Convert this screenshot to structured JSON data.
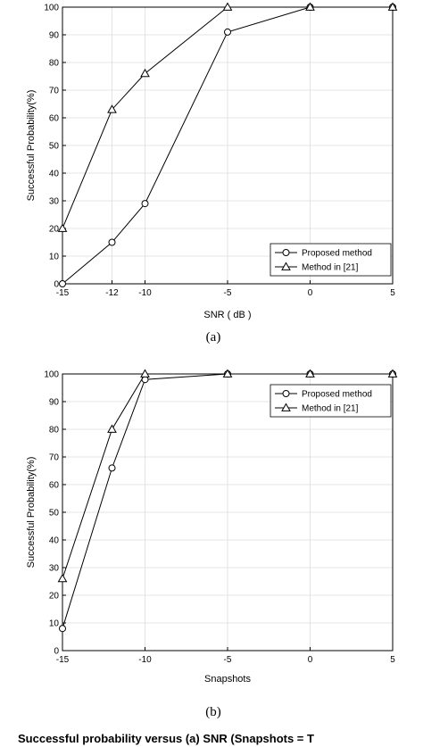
{
  "chart_data": [
    {
      "type": "line",
      "xlabel": "SNR ( dB )",
      "ylabel": "Successful Probability(%)",
      "x": [
        -15,
        -12,
        -10,
        -5,
        0,
        5
      ],
      "xticks": [
        "-15",
        "-12",
        "-10",
        "-5",
        "0",
        "5"
      ],
      "xlim": [
        -15,
        5
      ],
      "ylim": [
        0,
        100
      ],
      "yticks": [
        "0",
        "10",
        "20",
        "30",
        "40",
        "50",
        "60",
        "70",
        "80",
        "90",
        "100"
      ],
      "grid": true,
      "legend_position": "bottom-right",
      "series": [
        {
          "name": "Proposed method",
          "marker": "circle",
          "values": [
            0,
            15,
            29,
            91,
            100,
            100
          ]
        },
        {
          "name": "Method in [21]",
          "marker": "triangle",
          "values": [
            20,
            63,
            76,
            100,
            100,
            100
          ]
        }
      ],
      "sublabel": "(a)"
    },
    {
      "type": "line",
      "xlabel": "Snapshots",
      "ylabel": "Successful Probability(%)",
      "x": [
        -15,
        -12,
        -10,
        -5,
        0,
        5
      ],
      "xticks": [
        "-15",
        "-10",
        "-5",
        "0",
        "5"
      ],
      "xlim": [
        -15,
        5
      ],
      "ylim": [
        0,
        100
      ],
      "yticks": [
        "0",
        "10",
        "20",
        "30",
        "40",
        "50",
        "60",
        "70",
        "80",
        "90",
        "100"
      ],
      "grid": true,
      "legend_position": "top-right",
      "series": [
        {
          "name": "Proposed method",
          "marker": "circle",
          "values": [
            8,
            66,
            98,
            100,
            100,
            100
          ]
        },
        {
          "name": "Method in [21]",
          "marker": "triangle",
          "values": [
            26,
            80,
            100,
            100,
            100,
            100
          ]
        }
      ],
      "sublabel": "(b)"
    }
  ],
  "caption": "Successful probability versus (a) SNR (Snapshots = T"
}
